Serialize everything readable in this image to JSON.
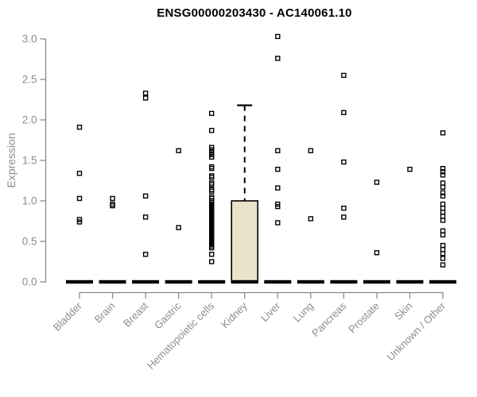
{
  "chart_data": {
    "type": "boxplot",
    "title": "ENSG00000203430 - AC140061.10",
    "ylabel": "Expression",
    "ylim": [
      0.0,
      3.0
    ],
    "ytick_labels": [
      "0.0",
      "0.5",
      "1.0",
      "1.5",
      "2.0",
      "2.5",
      "3.0"
    ],
    "ytick_values": [
      0.0,
      0.5,
      1.0,
      1.5,
      2.0,
      2.5,
      3.0
    ],
    "grid": "off",
    "legend": "none",
    "colors": {
      "box_fill": "#e9e4c9",
      "box_stroke": "#000000",
      "median_bar": "#000000",
      "point_stroke": "#000000",
      "axis": "#8a8a8a",
      "tick_label": "#8c8c8c",
      "title": "#000000"
    },
    "categories": [
      {
        "label": "Bladder",
        "q1": 0,
        "median": 0,
        "q3": 0,
        "whisker_high": null,
        "points": [
          1.91,
          1.34,
          1.03,
          0.77,
          0.74
        ]
      },
      {
        "label": "Brain",
        "q1": 0,
        "median": 0,
        "q3": 0,
        "whisker_high": null,
        "points": [
          1.03,
          0.96,
          0.94
        ]
      },
      {
        "label": "Breast",
        "q1": 0,
        "median": 0,
        "q3": 0,
        "whisker_high": null,
        "points": [
          2.33,
          2.27,
          1.06,
          0.8,
          0.34
        ]
      },
      {
        "label": "Gastric",
        "q1": 0,
        "median": 0,
        "q3": 0,
        "whisker_high": null,
        "points": [
          1.62,
          0.67
        ]
      },
      {
        "label": "Hematopoietic cells",
        "q1": 0,
        "median": 0,
        "q3": 0,
        "whisker_high": null,
        "points": [
          2.08,
          1.87,
          1.66,
          1.63,
          1.6,
          1.57,
          1.54,
          1.42,
          1.4,
          1.31,
          1.29,
          1.22,
          1.2,
          1.14,
          1.12,
          1.05,
          1.03,
          1.0,
          0.98,
          0.96,
          0.94,
          0.92,
          0.9,
          0.88,
          0.86,
          0.84,
          0.82,
          0.8,
          0.78,
          0.76,
          0.74,
          0.72,
          0.7,
          0.68,
          0.66,
          0.64,
          0.62,
          0.6,
          0.58,
          0.56,
          0.54,
          0.52,
          0.5,
          0.48,
          0.46,
          0.44,
          0.42,
          0.34,
          0.25
        ]
      },
      {
        "label": "Kidney",
        "q1": 0,
        "median": 0,
        "q3": 1.0,
        "whisker_high": 2.18,
        "points": []
      },
      {
        "label": "Liver",
        "q1": 0,
        "median": 0,
        "q3": 0,
        "whisker_high": null,
        "points": [
          3.03,
          2.76,
          1.62,
          1.39,
          1.16,
          0.96,
          0.93,
          0.73
        ]
      },
      {
        "label": "Lung",
        "q1": 0,
        "median": 0,
        "q3": 0,
        "whisker_high": null,
        "points": [
          1.62,
          0.78
        ]
      },
      {
        "label": "Pancreas",
        "q1": 0,
        "median": 0,
        "q3": 0,
        "whisker_high": null,
        "points": [
          2.55,
          2.09,
          1.48,
          0.91,
          0.8
        ]
      },
      {
        "label": "Prostate",
        "q1": 0,
        "median": 0,
        "q3": 0,
        "whisker_high": null,
        "points": [
          1.23,
          0.36
        ]
      },
      {
        "label": "Skin",
        "q1": 0,
        "median": 0,
        "q3": 0,
        "whisker_high": null,
        "points": [
          1.39
        ]
      },
      {
        "label": "Unknown / Other",
        "q1": 0,
        "median": 0,
        "q3": 0,
        "whisker_high": null,
        "points": [
          1.84,
          1.4,
          1.36,
          1.32,
          1.22,
          1.17,
          1.1,
          1.06,
          0.96,
          0.91,
          0.86,
          0.81,
          0.76,
          0.63,
          0.58,
          0.45,
          0.4,
          0.35,
          0.29,
          0.21
        ]
      }
    ]
  }
}
